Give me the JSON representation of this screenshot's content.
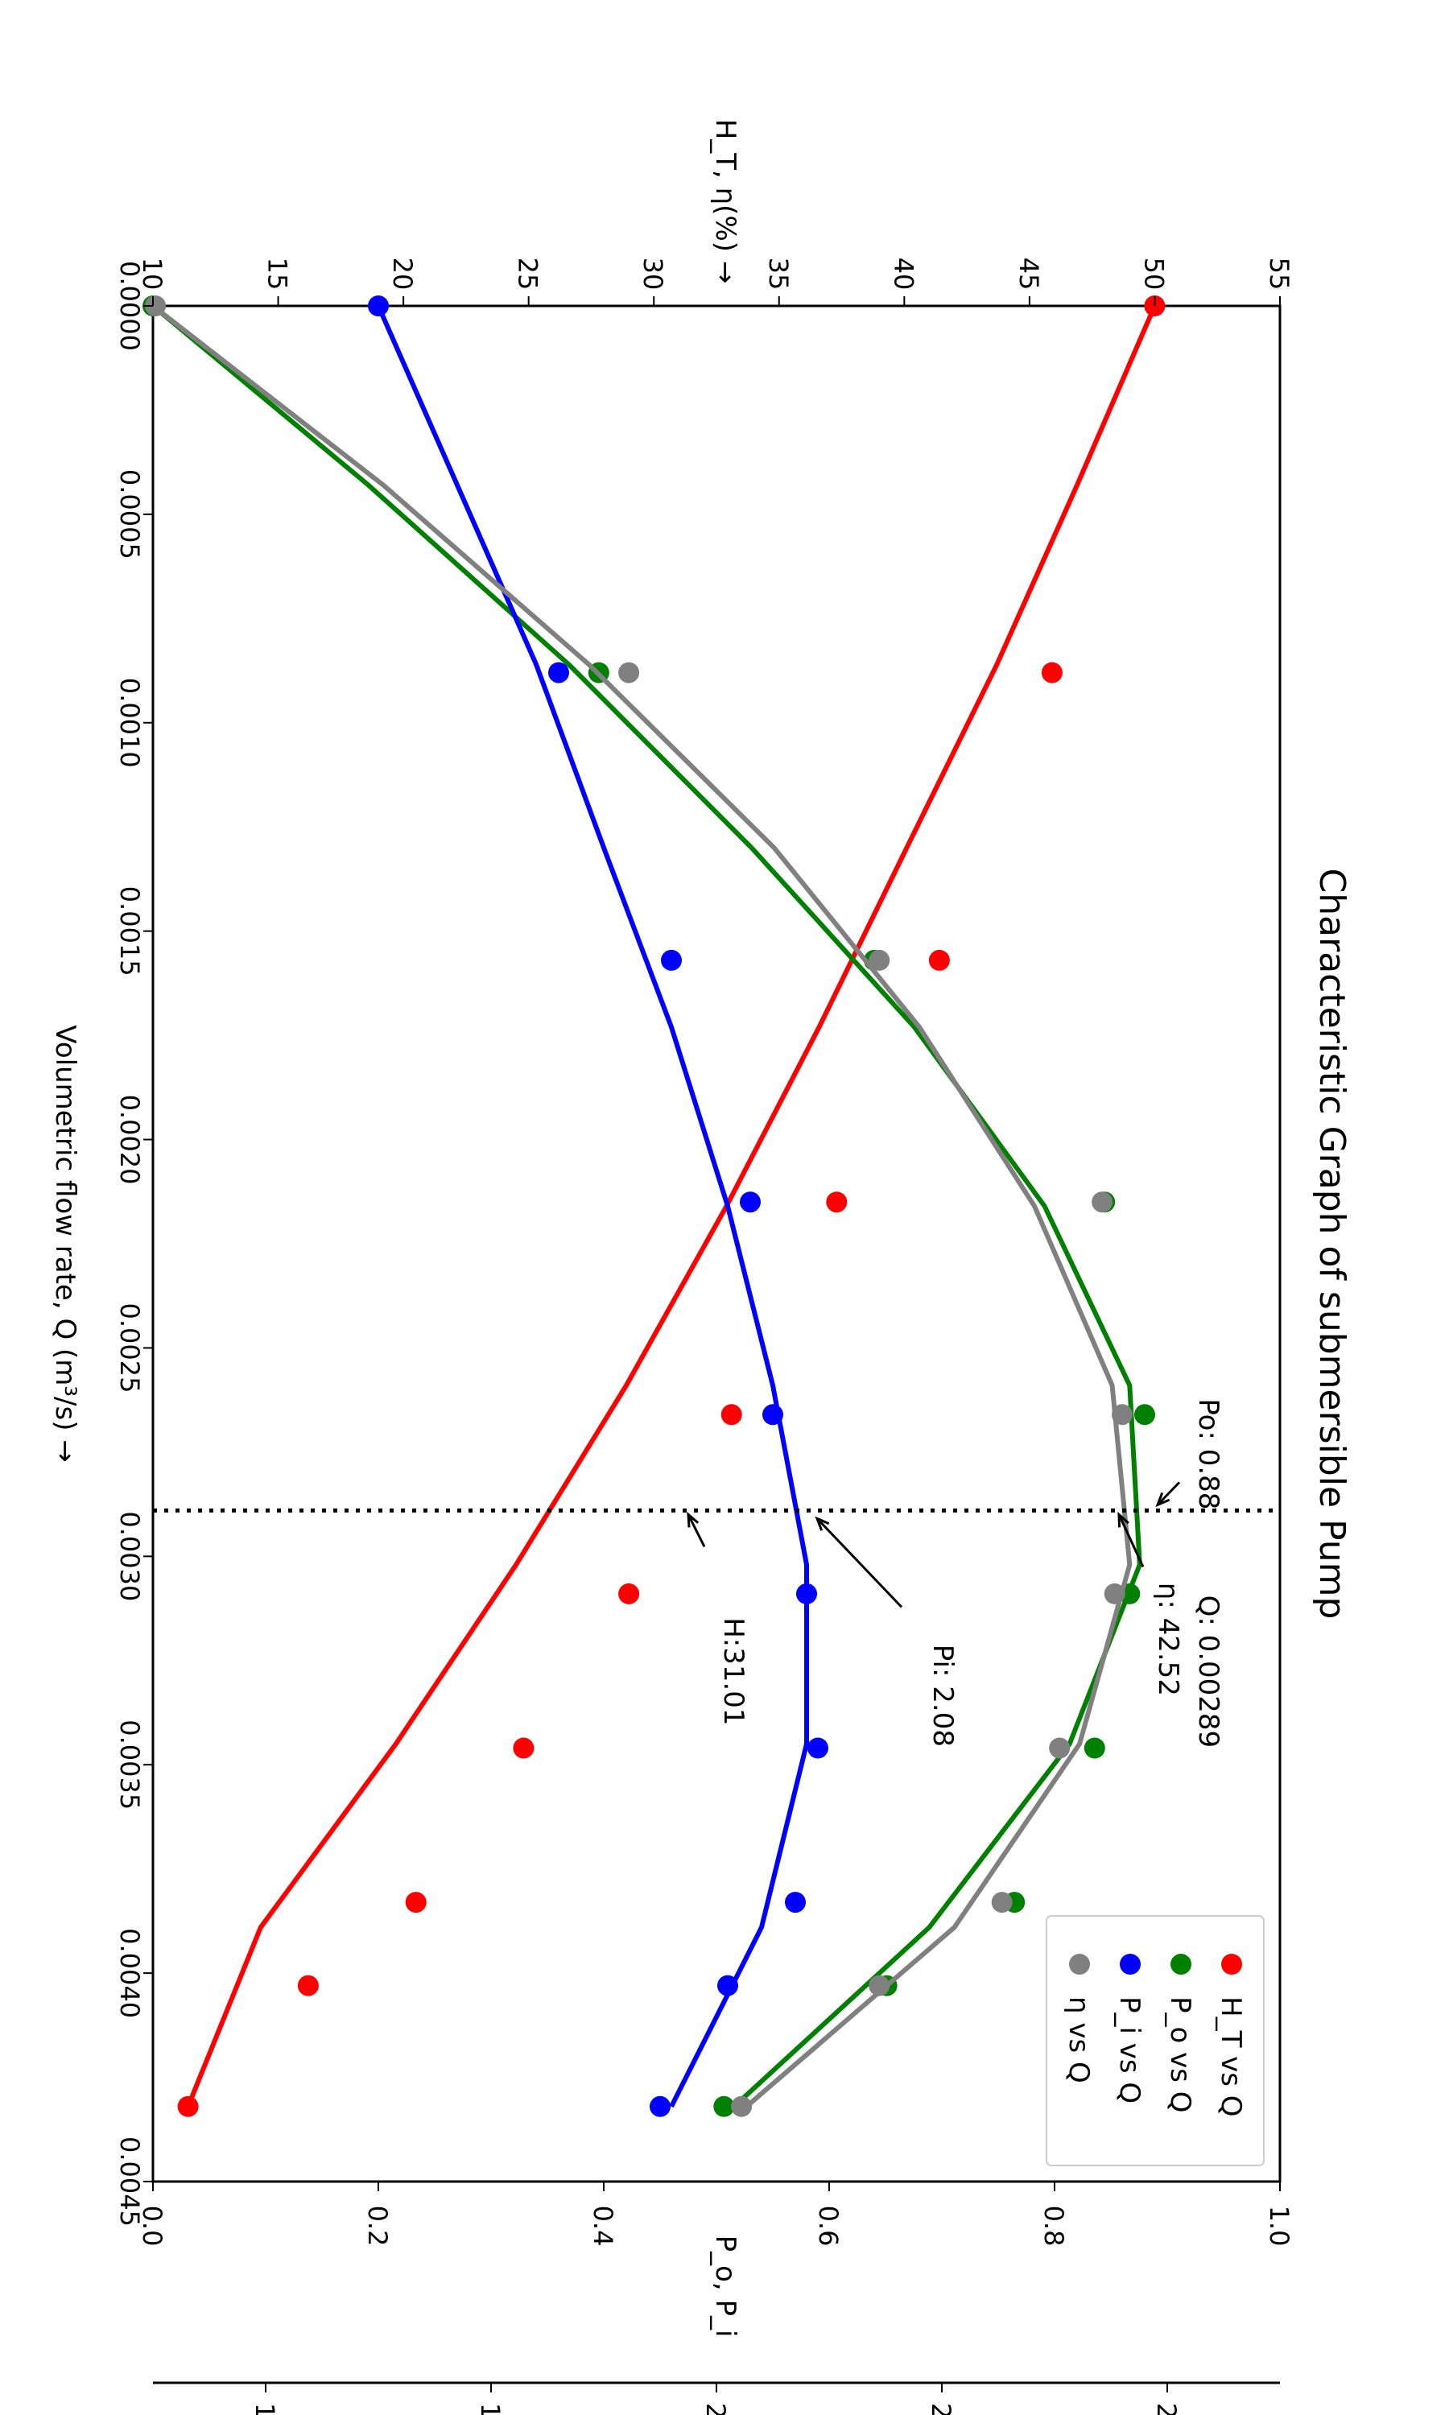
{
  "chart_data": {
    "type": "line",
    "title": "Characteristic Graph of submersible Pump",
    "xlabel": "Volumetric flow rate, Q (m³/s) →",
    "ylabel_left": "H_T, η(%) →",
    "ylabel_right": "P_o, P_i",
    "xlim": [
      0.0,
      0.0045
    ],
    "ylim_left": [
      10,
      55
    ],
    "ylim_right": [
      0.0,
      1.0
    ],
    "x_ticks": [
      "0.0000",
      "0.0005",
      "0.0010",
      "0.0015",
      "0.0020",
      "0.0025",
      "0.0030",
      "0.0035",
      "0.0040",
      "0.0045"
    ],
    "yleft_ticks": [
      "10",
      "15",
      "20",
      "25",
      "30",
      "35",
      "40",
      "45",
      "50",
      "55"
    ],
    "yright_ticks": [
      "0.0",
      "0.2",
      "0.4",
      "0.6",
      "0.8",
      "1.0"
    ],
    "x": [
      0.0,
      0.00088,
      0.00157,
      0.00215,
      0.00266,
      0.00309,
      0.00346,
      0.00383,
      0.00403,
      0.00432
    ],
    "series": [
      {
        "name": "H_T vs Q",
        "axis": "left",
        "color": "#ff0000",
        "points": [
          50.0,
          45.9,
          41.4,
          37.3,
          33.1,
          29.0,
          24.8,
          20.5,
          16.2,
          11.4
        ],
        "fit": [
          50.0,
          46.9,
          43.7,
          40.1,
          36.6,
          32.9,
          28.9,
          24.5,
          19.7,
          14.3,
          11.4
        ]
      },
      {
        "name": "P_o vs Q",
        "axis": "left",
        "color": "#008000",
        "points": [
          10.0,
          27.8,
          38.8,
          48.0,
          49.6,
          49.0,
          47.6,
          44.4,
          39.3,
          32.8
        ],
        "fit": [
          10.0,
          18.6,
          26.6,
          33.9,
          40.4,
          45.6,
          49.0,
          49.4,
          46.6,
          41.0,
          33.2
        ]
      },
      {
        "name": "P_i vs Q",
        "axis": "right",
        "color": "#0000ff",
        "points": [
          0.2,
          0.36,
          0.46,
          0.53,
          0.55,
          0.58,
          0.59,
          0.57,
          0.51,
          0.45
        ],
        "fit": [
          0.2,
          0.27,
          0.34,
          0.4,
          0.46,
          0.51,
          0.55,
          0.58,
          0.58,
          0.54,
          0.46
        ]
      },
      {
        "name": "η vs Q",
        "axis": "left",
        "color": "#808080",
        "points": [
          10.1,
          29.0,
          39.0,
          47.9,
          48.7,
          48.4,
          46.2,
          43.9,
          39.0,
          33.5
        ],
        "fit": [
          10.0,
          19.2,
          27.4,
          34.8,
          40.6,
          45.2,
          48.3,
          49.0,
          47.0,
          42.0,
          33.7
        ]
      }
    ],
    "fit_x": [
      0.0,
      0.00043,
      0.00086,
      0.0013,
      0.00173,
      0.00216,
      0.00259,
      0.00302,
      0.00345,
      0.00389,
      0.00432
    ],
    "operating_point": {
      "q": 0.00289,
      "label_q": "Q: 0.00289",
      "label_po": "Po: 0.88",
      "label_eta": "η: 42.52",
      "label_pi": "Pi: 2.08",
      "label_h": "H:31.01"
    },
    "second_axis_ticks": [
      "1",
      "1",
      "2",
      "2",
      "2"
    ],
    "grid": false,
    "legend": "bottom-right"
  }
}
